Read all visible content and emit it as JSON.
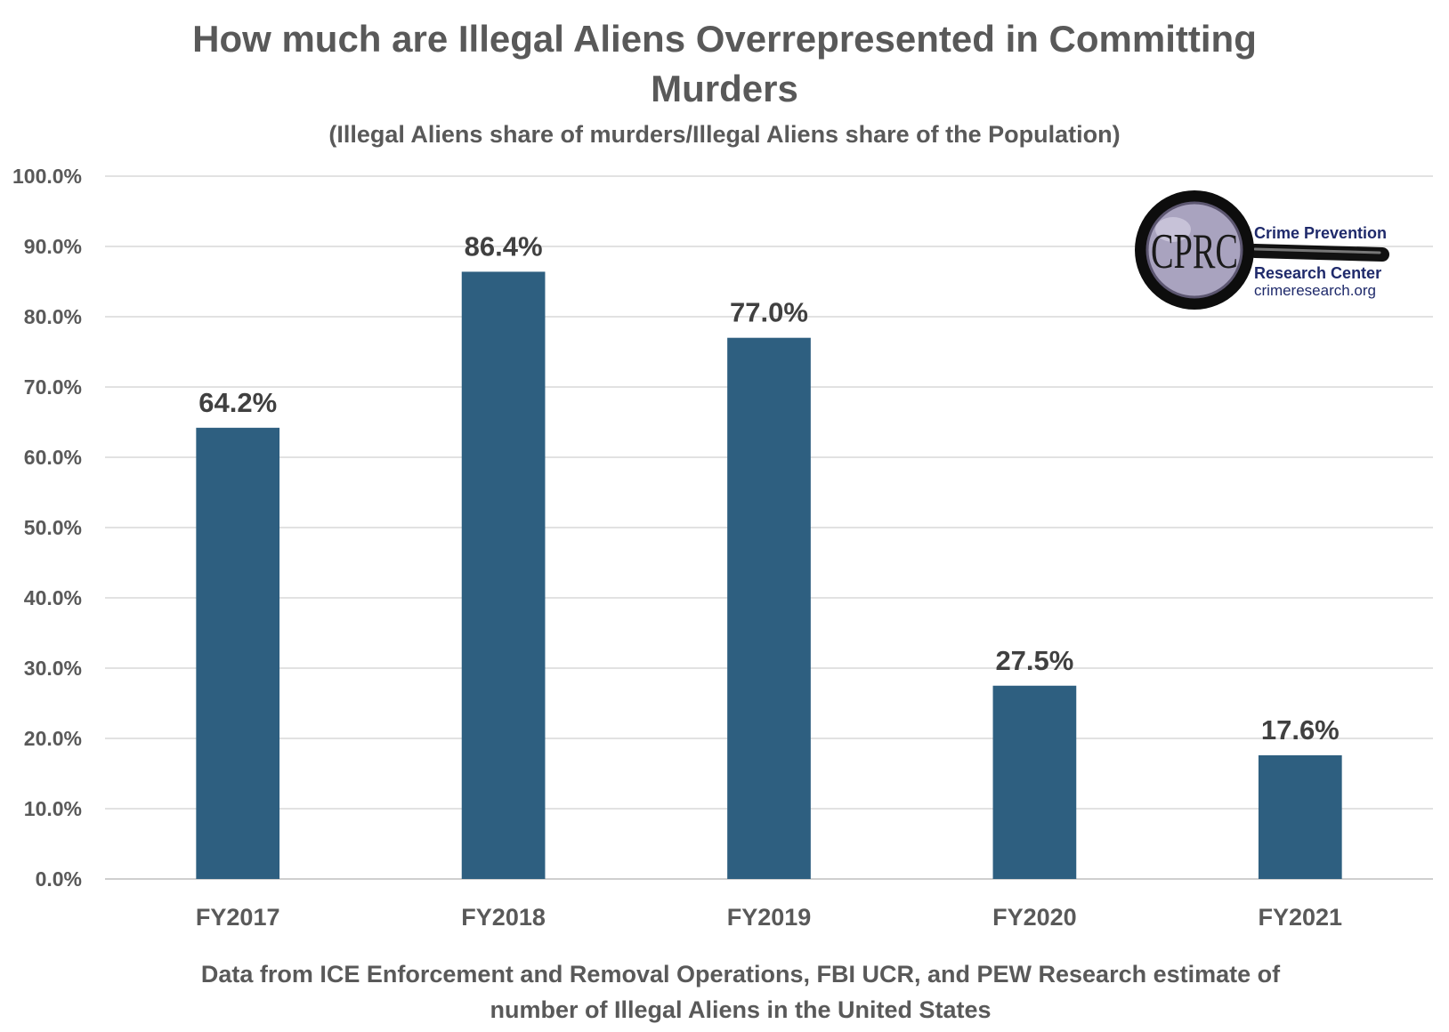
{
  "chart_data": {
    "type": "bar",
    "title": "How much are Illegal Aliens Overrepresented in Committing Murders",
    "title_lines": [
      "How much are Illegal Aliens Overrepresented in Committing",
      "Murders"
    ],
    "subtitle": "(Illegal Aliens share of murders/Illegal Aliens share of the Population)",
    "categories": [
      "FY2017",
      "FY2018",
      "FY2019",
      "FY2020",
      "FY2021"
    ],
    "values": [
      64.2,
      86.4,
      77.0,
      27.5,
      17.6
    ],
    "data_labels": [
      "64.2%",
      "86.4%",
      "77.0%",
      "27.5%",
      "17.6%"
    ],
    "y_ticks": [
      "0.0%",
      "10.0%",
      "20.0%",
      "30.0%",
      "40.0%",
      "50.0%",
      "60.0%",
      "70.0%",
      "80.0%",
      "90.0%",
      "100.0%"
    ],
    "ylim": [
      0,
      100
    ],
    "grid": true,
    "legend": "none",
    "bar_color": "#2e5f80",
    "footnote_lines": [
      "Data from ICE Enforcement and Removal Operations, FBI UCR, and PEW Research estimate of",
      "number of Illegal Aliens in the United States"
    ]
  },
  "logo": {
    "monogram": "CPRC",
    "line1": "Crime Prevention",
    "line2": "Research Center",
    "url": "crimeresearch.org"
  }
}
